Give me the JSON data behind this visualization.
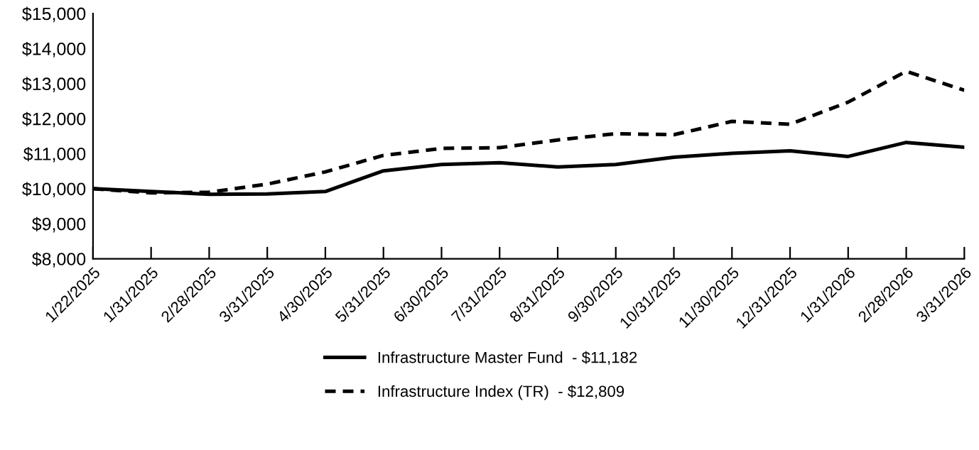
{
  "chart_data": {
    "type": "line",
    "categories": [
      "1/22/2025",
      "1/31/2025",
      "2/28/2025",
      "3/31/2025",
      "4/30/2025",
      "5/31/2025",
      "6/30/2025",
      "7/31/2025",
      "8/31/2025",
      "9/30/2025",
      "10/31/2025",
      "11/30/2025",
      "12/31/2025",
      "1/31/2026",
      "2/28/2026",
      "3/31/2026"
    ],
    "series": [
      {
        "name": "Infrastructure Master Fund  - $11,182",
        "color": "#000000",
        "line_style": "solid",
        "values": [
          10000,
          9920,
          9840,
          9850,
          9920,
          10510,
          10690,
          10740,
          10620,
          10690,
          10900,
          11010,
          11080,
          10920,
          11320,
          11182
        ]
      },
      {
        "name": "Infrastructure Index (TR)  - $12,809",
        "color": "#000000",
        "line_style": "dashed",
        "values": [
          10000,
          9880,
          9900,
          10130,
          10480,
          10950,
          11150,
          11170,
          11390,
          11570,
          11540,
          11920,
          11840,
          12470,
          13350,
          12809
        ]
      }
    ],
    "ylim": [
      8000,
      15000
    ],
    "yticks": [
      {
        "value": 8000,
        "label": "$8,000"
      },
      {
        "value": 9000,
        "label": "$9,000"
      },
      {
        "value": 10000,
        "label": "$10,000"
      },
      {
        "value": 11000,
        "label": "$11,000"
      },
      {
        "value": 12000,
        "label": "$12,000"
      },
      {
        "value": 13000,
        "label": "$13,000"
      },
      {
        "value": 14000,
        "label": "$14,000"
      },
      {
        "value": 15000,
        "label": "$15,000"
      }
    ],
    "grid": false,
    "legend": "bottom",
    "marker": "none"
  }
}
